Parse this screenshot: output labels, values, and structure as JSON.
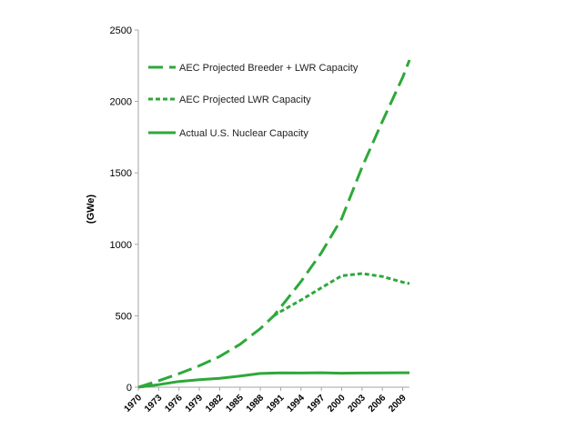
{
  "chart_data": {
    "type": "line",
    "title": "",
    "xlabel": "",
    "ylabel": "(GWe)",
    "xlim": [
      1970,
      2010
    ],
    "ylim": [
      0,
      2500
    ],
    "yticks": [
      0,
      500,
      1000,
      1500,
      2000,
      2500
    ],
    "xticks": [
      1970,
      1973,
      1976,
      1979,
      1982,
      1985,
      1988,
      1991,
      1994,
      1997,
      2000,
      2003,
      2006,
      2009
    ],
    "grid": false,
    "legend_position": "top-left",
    "series": [
      {
        "name": "AEC Projected Breeder + LWR Capacity",
        "style": "long-dash",
        "color": "#2ea83a",
        "x": [
          1970,
          1973,
          1976,
          1979,
          1982,
          1985,
          1988,
          1990,
          1991,
          1994,
          1997,
          2000,
          2003,
          2006,
          2009,
          2010
        ],
        "values": [
          0,
          45,
          95,
          150,
          215,
          300,
          410,
          500,
          560,
          740,
          940,
          1180,
          1540,
          1860,
          2170,
          2290
        ]
      },
      {
        "name": "AEC Projected LWR Capacity",
        "style": "short-dash",
        "color": "#2ea83a",
        "x": [
          1990,
          1991,
          1994,
          1997,
          2000,
          2003,
          2006,
          2009,
          2010
        ],
        "values": [
          500,
          530,
          610,
          695,
          780,
          795,
          775,
          735,
          725
        ]
      },
      {
        "name": "Actual U.S. Nuclear Capacity",
        "style": "solid",
        "color": "#2ea83a",
        "x": [
          1970,
          1973,
          1976,
          1979,
          1982,
          1985,
          1988,
          1991,
          1994,
          1997,
          2000,
          2003,
          2006,
          2009,
          2010
        ],
        "values": [
          0,
          18,
          40,
          52,
          62,
          78,
          96,
          100,
          99,
          101,
          98,
          99,
          100,
          101,
          101
        ]
      }
    ]
  }
}
